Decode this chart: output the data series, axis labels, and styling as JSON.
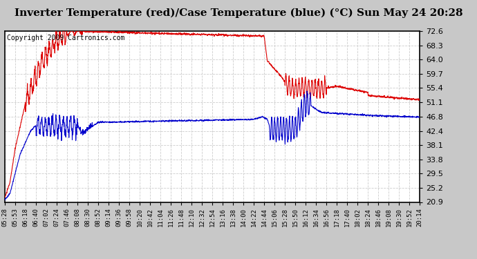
{
  "title": "Inverter Temperature (red)/Case Temperature (blue) (°C) Sun May 24 20:28",
  "copyright": "Copyright 2009 Cartronics.com",
  "ylim": [
    20.9,
    72.6
  ],
  "yticks": [
    20.9,
    25.2,
    29.5,
    33.8,
    38.1,
    42.4,
    46.8,
    51.1,
    55.4,
    59.7,
    64.0,
    68.3,
    72.6
  ],
  "xlabels": [
    "05:28",
    "05:53",
    "06:18",
    "06:40",
    "07:02",
    "07:24",
    "07:46",
    "08:08",
    "08:30",
    "08:52",
    "09:14",
    "09:36",
    "09:58",
    "10:20",
    "10:42",
    "11:04",
    "11:26",
    "11:48",
    "12:10",
    "12:32",
    "12:54",
    "13:16",
    "13:38",
    "14:00",
    "14:22",
    "14:44",
    "15:06",
    "15:28",
    "15:50",
    "16:12",
    "16:34",
    "16:56",
    "17:18",
    "17:40",
    "18:02",
    "18:24",
    "18:46",
    "19:08",
    "19:30",
    "19:52",
    "20:14"
  ],
  "outer_bg": "#c8c8c8",
  "plot_bg": "#ffffff",
  "grid_color": "#cccccc",
  "red_color": "#dd0000",
  "blue_color": "#0000cc",
  "title_fontsize": 11,
  "copyright_fontsize": 7
}
